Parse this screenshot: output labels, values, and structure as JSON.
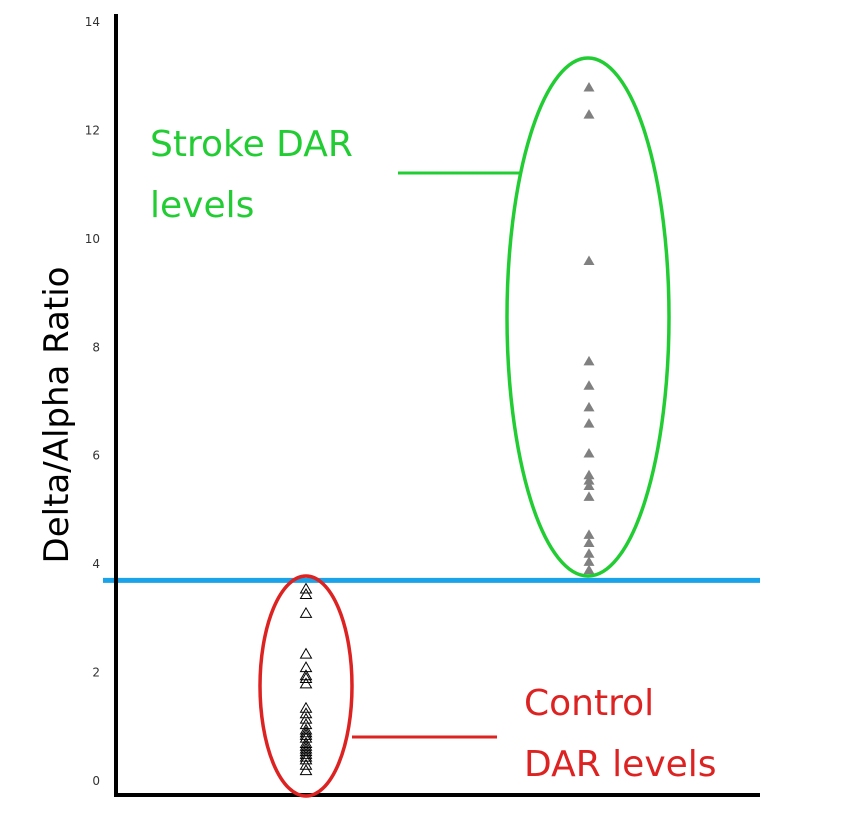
{
  "chart_data": {
    "type": "scatter",
    "title": "",
    "xlabel": "",
    "ylabel": "Delta/Alpha Ratio",
    "ylim": [
      0,
      14
    ],
    "yticks": [
      "0",
      "2",
      "4",
      "6",
      "8",
      "10",
      "12",
      "14"
    ],
    "grid": false,
    "threshold": {
      "y": 3.7,
      "color": "#1aa3e8"
    },
    "series": [
      {
        "group": "control",
        "marker": "open-triangle",
        "color": "#000000",
        "y": [
          3.55,
          3.45,
          3.1,
          2.35,
          2.1,
          1.95,
          1.9,
          1.8,
          1.35,
          1.25,
          1.15,
          1.05,
          0.95,
          0.9,
          0.85,
          0.8,
          0.7,
          0.65,
          0.6,
          0.55,
          0.5,
          0.45,
          0.4,
          0.3,
          0.2
        ]
      },
      {
        "group": "stroke",
        "marker": "filled-triangle",
        "color": "#808080",
        "y": [
          12.8,
          12.3,
          9.6,
          7.75,
          7.3,
          6.9,
          6.6,
          6.05,
          5.65,
          5.55,
          5.45,
          5.25,
          4.55,
          4.4,
          4.2,
          4.05,
          3.9
        ]
      }
    ],
    "annotations": [
      {
        "id": "stroke",
        "lines": [
          "Stroke DAR",
          "levels"
        ],
        "color": "#22cc33"
      },
      {
        "id": "control",
        "lines": [
          "Control",
          "DAR levels"
        ],
        "color": "#dd2222"
      }
    ]
  }
}
